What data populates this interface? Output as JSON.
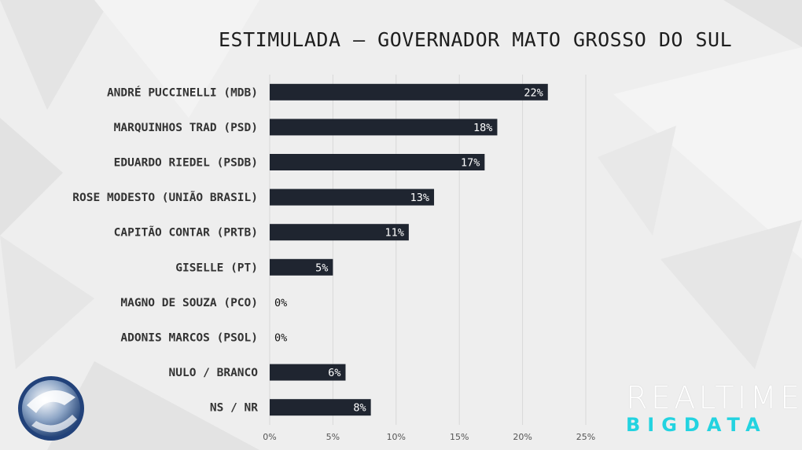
{
  "title": "ESTIMULADA – GOVERNADOR MATO GROSSO DO SUL",
  "chart_data": {
    "type": "bar",
    "orientation": "horizontal",
    "categories": [
      "ANDRÉ PUCCINELLI (MDB)",
      "MARQUINHOS TRAD (PSD)",
      "EDUARDO RIEDEL (PSDB)",
      "ROSE MODESTO (UNIÃO BRASIL)",
      "CAPITÃO CONTAR (PRTB)",
      "GISELLE (PT)",
      "MAGNO DE SOUZA (PCO)",
      "ADONIS MARCOS (PSOL)",
      "NULO / BRANCO",
      "NS / NR"
    ],
    "values": [
      22,
      18,
      17,
      13,
      11,
      5,
      0,
      0,
      6,
      8
    ],
    "value_labels": [
      "22%",
      "18%",
      "17%",
      "13%",
      "11%",
      "5%",
      "0%",
      "0%",
      "6%",
      "8%"
    ],
    "xlim": [
      0,
      25
    ],
    "ticks": [
      "0%",
      "5%",
      "10%",
      "15%",
      "20%",
      "25%"
    ],
    "tick_values": [
      0,
      5,
      10,
      15,
      20,
      25
    ],
    "grid": true,
    "colors": {
      "bar": "#1f2530",
      "text": "#333333",
      "gridline": "#d8d8d8"
    }
  },
  "brand": {
    "line1": "REALTIME",
    "line2": "BIGDATA"
  }
}
